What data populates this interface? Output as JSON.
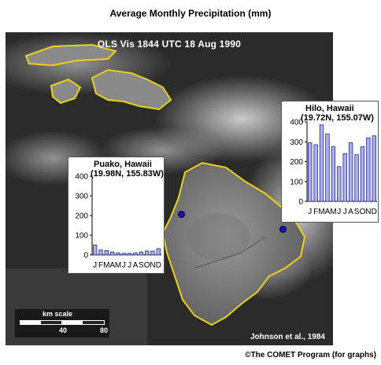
{
  "page_title": "Average Monthly Precipitation (mm)",
  "image_caption": "OLS Vis 1844 UTC  18 Aug 1990",
  "source_credit": "Johnson et al., 1984",
  "footer_credit": "©The COMET Program (for graphs)",
  "scale": {
    "label": "km scale",
    "tick_40": "40",
    "tick_80": "80"
  },
  "colors": {
    "coastline": "#e8d21a",
    "bar_fill": "#aab0ee",
    "bar_stroke": "#2a2a7a",
    "dot": "#1010d0"
  },
  "chart_data": [
    {
      "type": "bar",
      "title": "Puako, Hawaii",
      "subtitle": "(19.98N, 155.83W)",
      "categories": [
        "J",
        "F",
        "M",
        "A",
        "M",
        "J",
        "J",
        "A",
        "S",
        "O",
        "N",
        "D"
      ],
      "values": [
        50,
        25,
        22,
        15,
        10,
        8,
        8,
        10,
        15,
        20,
        20,
        32
      ],
      "ylim": [
        0,
        400
      ],
      "yticks": [
        "0",
        "100",
        "200",
        "300",
        "400"
      ],
      "xlabel": "",
      "ylabel": ""
    },
    {
      "type": "bar",
      "title": "Hilo, Hawaii",
      "subtitle": "(19.72N, 155.07W)",
      "categories": [
        "J",
        "F",
        "M",
        "A",
        "M",
        "J",
        "J",
        "A",
        "S",
        "O",
        "N",
        "D"
      ],
      "values": [
        295,
        285,
        385,
        340,
        275,
        175,
        240,
        295,
        235,
        275,
        320,
        330
      ],
      "ylim": [
        0,
        400
      ],
      "yticks": [
        "0",
        "100",
        "200",
        "300",
        "400"
      ],
      "xlabel": "",
      "ylabel": ""
    }
  ]
}
